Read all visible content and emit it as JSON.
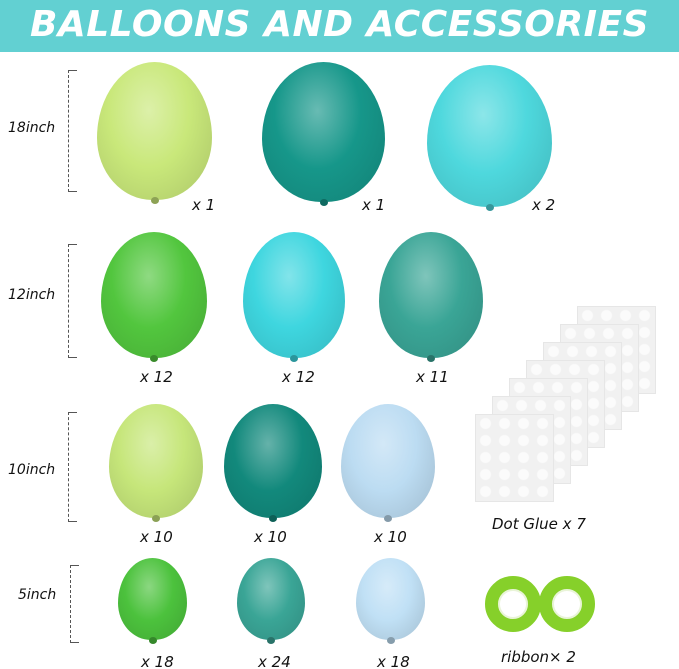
{
  "header": {
    "title": "BALLOONS AND ACCESSORIES",
    "color": "#62d0d2"
  },
  "rows": [
    {
      "size": "18inch",
      "items": [
        {
          "qty": "x 1",
          "color": "#c9e87a"
        },
        {
          "qty": "x 1",
          "color": "#16978a"
        },
        {
          "qty": "x 2",
          "color": "#4ed8dd"
        }
      ]
    },
    {
      "size": "12inch",
      "items": [
        {
          "qty": "x 12",
          "color": "#52c63e"
        },
        {
          "qty": "x 12",
          "color": "#3ed6df"
        },
        {
          "qty": "x 11",
          "color": "#3aa596"
        }
      ]
    },
    {
      "size": "10inch",
      "items": [
        {
          "qty": "x 10",
          "color": "#c6e67a"
        },
        {
          "qty": "x 10",
          "color": "#12897c"
        },
        {
          "qty": "x 10",
          "color": "#bcdcf2"
        }
      ]
    },
    {
      "size": "5inch",
      "items": [
        {
          "qty": "x 18",
          "color": "#4cc23d"
        },
        {
          "qty": "x 24",
          "color": "#3aa596"
        },
        {
          "qty": "x 18",
          "color": "#c0e0f5"
        }
      ]
    }
  ],
  "accessories": {
    "dot_glue": "Dot Glue x 7",
    "ribbon": "ribbon× 2",
    "ribbon_color": "#86d02a"
  }
}
